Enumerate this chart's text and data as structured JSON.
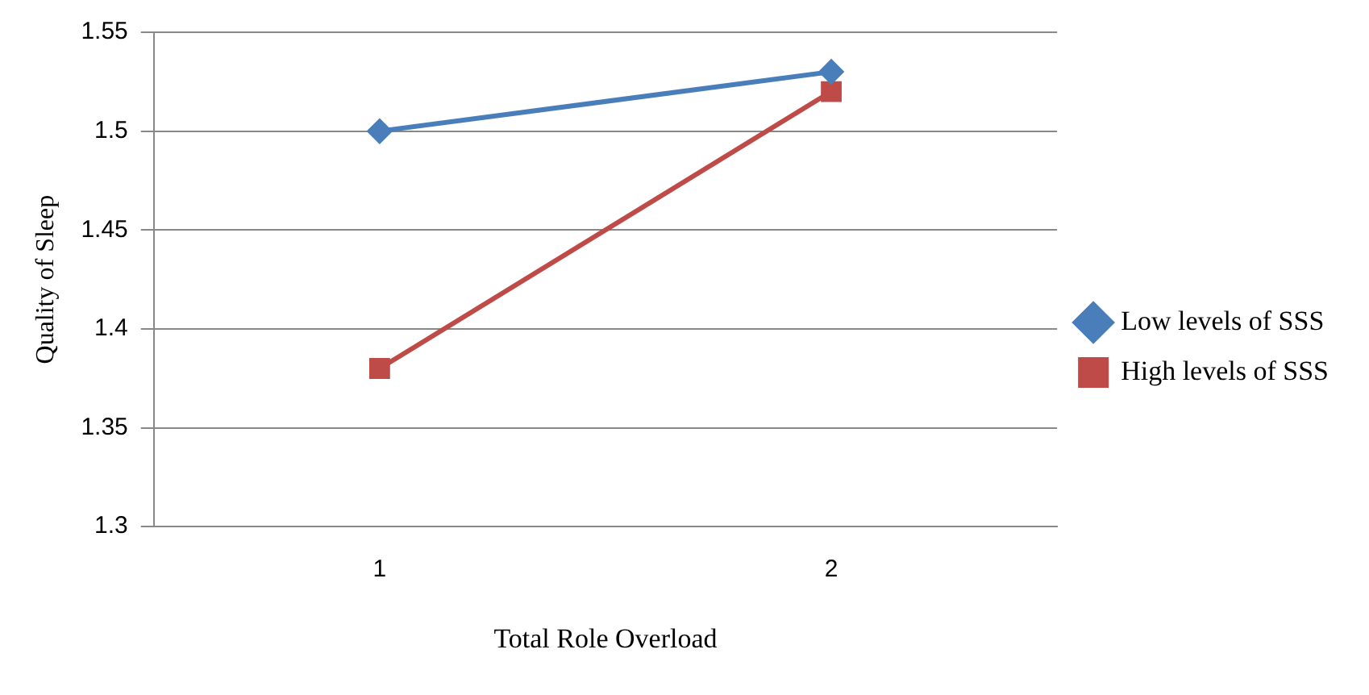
{
  "chart_data": {
    "type": "line",
    "xlabel": "Total Role Overload",
    "ylabel": "Quality of Sleep",
    "categories": [
      "1",
      "2"
    ],
    "series": [
      {
        "name": "Low levels of SSS",
        "color": "#4a7ebb",
        "values": [
          1.5,
          1.53
        ],
        "marker": "diamond"
      },
      {
        "name": "High levels of SSS",
        "color": "#be4b48",
        "values": [
          1.38,
          1.52
        ],
        "marker": "square"
      }
    ],
    "ylim": [
      1.3,
      1.55
    ],
    "yticks": [
      1.3,
      1.35,
      1.4,
      1.45,
      1.5,
      1.55
    ],
    "grid": "y",
    "legend": "right"
  }
}
